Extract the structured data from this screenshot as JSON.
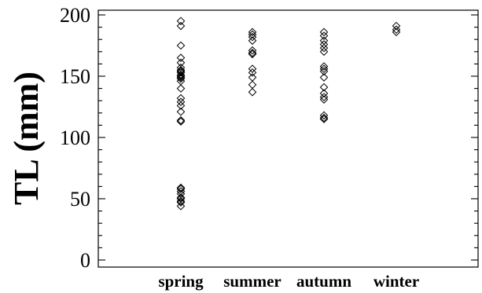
{
  "chart_data": {
    "type": "scatter",
    "title": "",
    "xlabel": "",
    "ylabel": "TL (mm)",
    "categories": [
      "spring",
      "summer",
      "autumn",
      "winter"
    ],
    "ylim": [
      0,
      200
    ],
    "yticks": [
      "0",
      "50",
      "100",
      "150",
      "200"
    ],
    "y_minor_step": 10,
    "grid": false,
    "legend": "none",
    "marker": "diamond-open",
    "colors": {
      "marker": "#000000",
      "axis": "#000000",
      "background": "#ffffff"
    },
    "series": [
      {
        "category": "spring",
        "values": [
          195,
          191,
          175,
          165,
          161,
          157,
          155,
          154,
          153,
          151,
          150,
          149,
          148,
          146,
          140,
          132,
          129,
          126,
          121,
          114,
          113,
          59,
          58,
          56,
          54,
          51,
          50,
          48,
          47,
          44
        ]
      },
      {
        "category": "summer",
        "values": [
          186,
          184,
          182,
          179,
          171,
          169,
          168,
          156,
          153,
          149,
          143,
          137
        ]
      },
      {
        "category": "autumn",
        "values": [
          186,
          183,
          179,
          176,
          173,
          170,
          158,
          156,
          154,
          149,
          141,
          136,
          133,
          131,
          118,
          116,
          115
        ]
      },
      {
        "category": "winter",
        "values": [
          191,
          188,
          186
        ]
      }
    ]
  }
}
